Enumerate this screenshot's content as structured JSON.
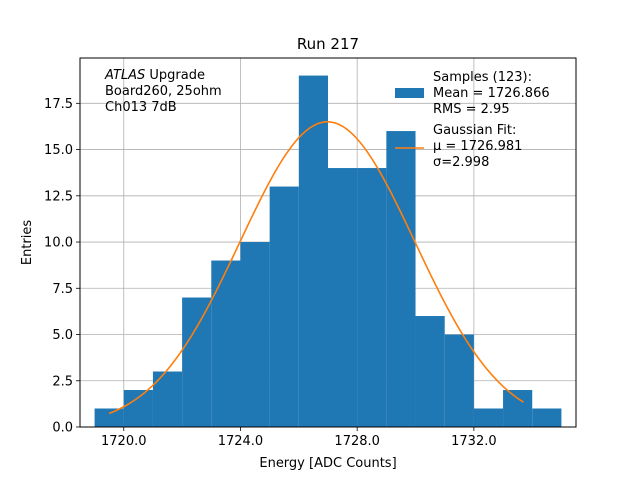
{
  "chart_data": {
    "type": "bar",
    "title": "Run 217",
    "xlabel": "Energy [ADC Counts]",
    "ylabel": "Entries",
    "xlim": [
      1718.5,
      1735.5
    ],
    "ylim": [
      0,
      19.95
    ],
    "xticks": [
      1720,
      1724,
      1728,
      1732
    ],
    "xtick_labels": [
      "1720.0",
      "1724.0",
      "1728.0",
      "1732.0"
    ],
    "yticks": [
      0,
      2.5,
      5,
      7.5,
      10,
      12.5,
      15,
      17.5
    ],
    "ytick_labels": [
      "0.0",
      "2.5",
      "5.0",
      "7.5",
      "10.0",
      "12.5",
      "15.0",
      "17.5"
    ],
    "grid": true,
    "legend_position": "top-right",
    "histogram": {
      "bin_start": 1719,
      "bin_width": 1,
      "counts": [
        1,
        2,
        3,
        7,
        9,
        10,
        13,
        19,
        14,
        14,
        16,
        6,
        5,
        1,
        2,
        1
      ],
      "color": "#1f77b4"
    },
    "fit": {
      "mu": 1726.981,
      "sigma": 2.998,
      "amplitude": 16.5,
      "x_range": [
        1719.5,
        1733.7
      ],
      "color": "#ff7f0e"
    },
    "legend": [
      {
        "label_lines": [
          "Samples (123):",
          " Mean = 1726.866",
          " RMS = 2.95"
        ],
        "kind": "patch",
        "color": "#1f77b4"
      },
      {
        "label_lines": [
          "Gaussian Fit:",
          " μ = 1726.981",
          " σ=2.998"
        ],
        "kind": "line",
        "color": "#ff7f0e"
      }
    ],
    "annotation": {
      "italic": "ATLAS",
      "lines": [
        " Upgrade",
        " Board260, 25ohm",
        " Ch013 7dB"
      ]
    }
  }
}
